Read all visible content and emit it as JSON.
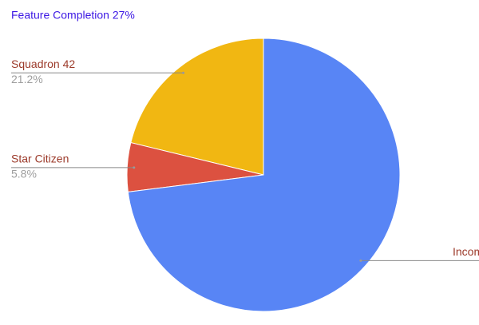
{
  "chart_data": {
    "type": "pie",
    "title": "Feature Completion 27%",
    "categories": [
      "Squadron 42",
      "Star Citizen",
      "Incomplete"
    ],
    "values": [
      21.2,
      5.8,
      73.0
    ],
    "value_labels": [
      "21.2%",
      "5.8%",
      null
    ],
    "colors": [
      "#f1b712",
      "#dc5140",
      "#5885f5"
    ]
  }
}
